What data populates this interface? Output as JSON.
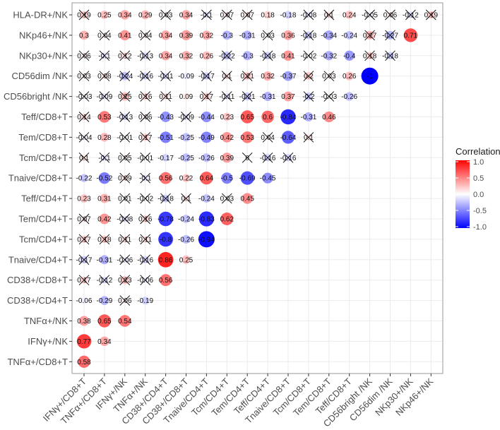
{
  "chart_data": {
    "type": "heatmap",
    "subtype": "correlation-circle-lower-triangle",
    "x_labels": [
      "IFNγ+/CD8+T",
      "TNFα+/CD8+T",
      "IFNγ+/NK",
      "TNFα+/NK",
      "CD38+/CD4+T",
      "CD38+/CD8+T",
      "Tnaive/CD4+T",
      "Tcm/CD4+T",
      "Tem/CD4+T",
      "Teff/CD4+T",
      "Tnaive/CD8+T",
      "Tcm/CD8+T",
      "Tem/CD8+T",
      "Teff/CD8+T",
      "CD56bright /NK",
      "CD56dim /NK",
      "NKp30+/NK",
      "NKp46+/NK"
    ],
    "rows": [
      {
        "label": "HLA-DR+/NK",
        "values": [
          0.19,
          0.25,
          0.34,
          0.29,
          0.03,
          0.34,
          -0.1,
          0.07,
          0.07,
          0.18,
          -0.18,
          -0.08,
          0.1,
          0.24,
          -0.05,
          0.06,
          -0.12,
          0.19
        ],
        "crossed": [
          0,
          4,
          6,
          7,
          8,
          11,
          12,
          14,
          15,
          16,
          17
        ]
      },
      {
        "label": "NKp46+/NK",
        "values": [
          0.3,
          0.04,
          0.41,
          0.04,
          0.34,
          0.39,
          0.32,
          -0.3,
          -0.31,
          0.03,
          0.36,
          -0.18,
          -0.34,
          -0.24,
          0.27,
          -0.27,
          0.71
        ],
        "crossed": [
          1,
          3,
          9,
          11,
          14,
          15
        ]
      },
      {
        "label": "NKp30+/NK",
        "values": [
          0.06,
          -0.1,
          0.12,
          -0.13,
          0.34,
          0.32,
          0.26,
          -0.22,
          -0.3,
          -0.18,
          0.41,
          -0.02,
          -0.32,
          -0.4,
          0.18,
          -0.18
        ],
        "crossed": [
          0,
          1,
          2,
          3,
          7,
          9,
          11,
          14,
          15
        ]
      },
      {
        "label": "CD56dim /NK",
        "values": [
          0.03,
          0.08,
          -0.24,
          -0.16,
          -0.11,
          -0.09,
          -0.17,
          0.1,
          0.21,
          0.32,
          -0.37,
          0.2,
          0.03,
          0.26,
          -1
        ],
        "crossed": [
          0,
          1,
          2,
          3,
          4,
          6,
          7,
          8,
          11,
          12
        ]
      },
      {
        "label": "CD56bright /NK",
        "values": [
          -0.03,
          -0.09,
          0.25,
          0.16,
          0.11,
          0.09,
          0.17,
          -0.11,
          -0.21,
          -0.31,
          0.37,
          -0.2,
          -0.03,
          -0.26
        ],
        "crossed": [
          0,
          1,
          2,
          3,
          4,
          6,
          7,
          8,
          11,
          12
        ]
      },
      {
        "label": "Teff/CD8+T",
        "values": [
          0.14,
          0.53,
          -0.13,
          0.06,
          -0.43,
          -0.09,
          -0.44,
          0.23,
          0.65,
          0.6,
          -0.84,
          -0.31,
          0.46
        ],
        "crossed": [
          0,
          2,
          3,
          5
        ]
      },
      {
        "label": "Tem/CD8+T",
        "values": [
          -0.04,
          0.28,
          -0.01,
          0.17,
          -0.51,
          -0.25,
          -0.49,
          0.42,
          0.53,
          0.04,
          -0.64,
          0.1
        ],
        "crossed": [
          0,
          2,
          3,
          9,
          11
        ]
      },
      {
        "label": "Tcm/CD8+T",
        "values": [
          0.1,
          -0.1,
          0.05,
          -0.01,
          -0.17,
          -0.25,
          -0.26,
          0.39,
          0,
          -0.16,
          -0.16
        ],
        "crossed": [
          0,
          1,
          2,
          3,
          8,
          9,
          10
        ]
      },
      {
        "label": "Tnaive/CD8+T",
        "values": [
          -0.22,
          -0.52,
          0.09,
          -0.1,
          0.56,
          0.22,
          0.64,
          -0.5,
          -0.69,
          -0.45
        ],
        "crossed": [
          2,
          3
        ]
      },
      {
        "label": "Teff/CD4+T",
        "values": [
          0.23,
          0.31,
          0.01,
          -0.02,
          -0.18,
          0.1,
          -0.24,
          0.03,
          0.45
        ],
        "crossed": [
          2,
          3,
          4,
          5,
          7
        ]
      },
      {
        "label": "Tem/CD4+T",
        "values": [
          0.07,
          0.42,
          -0.08,
          0.16,
          -0.78,
          -0.24,
          -0.83,
          0.62
        ],
        "crossed": [
          0,
          2,
          3
        ]
      },
      {
        "label": "Tcm/CD4+T",
        "values": [
          0.17,
          0.18,
          0.11,
          0.11,
          -0.8,
          -0.26,
          -0.94
        ],
        "crossed": [
          0,
          1,
          2,
          3
        ]
      },
      {
        "label": "Tnaive/CD4+T",
        "values": [
          -0.17,
          -0.31,
          -0.06,
          -0.16,
          0.86,
          0.25
        ],
        "crossed": [
          0,
          2,
          3
        ]
      },
      {
        "label": "CD38+/CD8+T",
        "values": [
          0.17,
          -0.12,
          0.23,
          -0.06,
          0.56
        ],
        "crossed": [
          0,
          1,
          2,
          3
        ]
      },
      {
        "label": "CD38+/CD4+T",
        "values": [
          -0.06,
          -0.29,
          0.06,
          -0.19
        ],
        "crossed": [
          2
        ]
      },
      {
        "label": "TNFα+/NK",
        "values": [
          0.38,
          0.65,
          0.54
        ],
        "crossed": []
      },
      {
        "label": "IFNγ+/NK",
        "values": [
          0.77,
          0.34
        ],
        "crossed": []
      },
      {
        "label": "TNFα+/CD8+T",
        "values": [
          0.58
        ],
        "crossed": []
      }
    ],
    "legend": {
      "title": "Correlation",
      "ticks": [
        "1.0",
        "0.5",
        "0.0",
        "-0.5",
        "-1.0"
      ],
      "tick_values": [
        1,
        0.5,
        0,
        -0.5,
        -1
      ],
      "placement": "right"
    },
    "colors": {
      "low": "#0000FF",
      "mid": "#FFFFFF",
      "high": "#FF0000"
    },
    "value_range": [
      -1,
      1
    ],
    "grid": true
  }
}
